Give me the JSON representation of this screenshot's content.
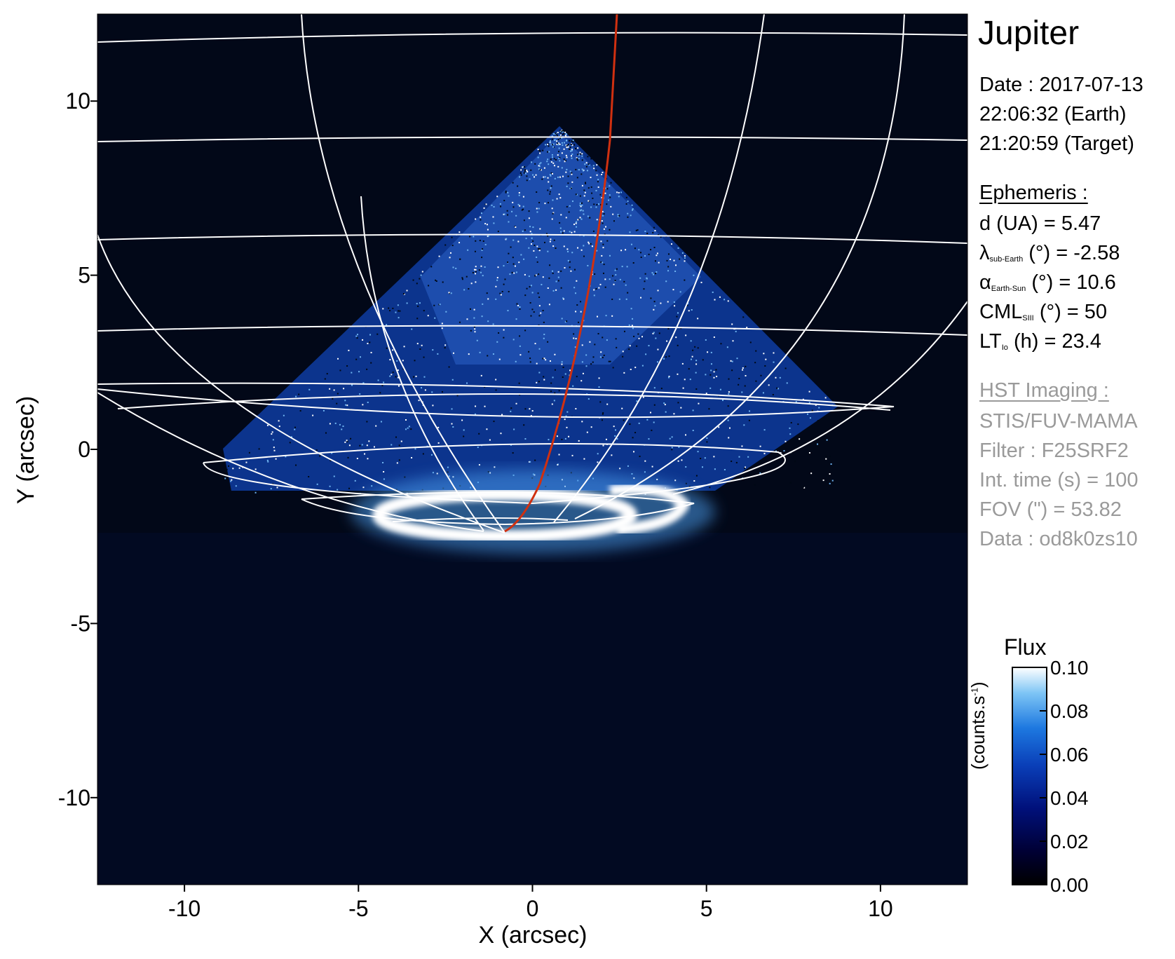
{
  "figure": {
    "title": "Jupiter",
    "date_line": "Date : 2017-07-13",
    "earth_time": "22:06:32 (Earth)",
    "target_time": "21:20:59 (Target)",
    "ephemeris": {
      "header": "Ephemeris :",
      "distance": "d (UA)    = 5.47",
      "lambda_symbol": "λ",
      "lambda_sub": "sub-Earth",
      "lambda_rest": "(°) = -2.58",
      "alpha_symbol": "α",
      "alpha_sub": "Earth-Sun",
      "alpha_rest": "(°) = 10.6",
      "cml_symbol": "CML",
      "cml_sub": "SIII",
      "cml_rest": "(°) = 50",
      "lt_symbol": "LT",
      "lt_sub": "Io",
      "lt_rest": "(h) = 23.4"
    },
    "hst": {
      "header": "HST Imaging :",
      "instrument": "STIS/FUV-MAMA",
      "filter": "Filter : F25SRF2",
      "int_time": "Int. time (s) = 100",
      "fov": "FOV (\") = 53.82",
      "data_id": "Data : od8k0zs10"
    },
    "colorbar": {
      "title": "Flux",
      "unit_label": "(counts.s",
      "unit_exp": "-1",
      "unit_close": ")",
      "ticks": [
        "0.10",
        "0.08",
        "0.06",
        "0.04",
        "0.02",
        "0.00"
      ],
      "colors": [
        "#000000",
        "#000033",
        "#00107a",
        "#0a3fb8",
        "#1d78e0",
        "#7cc4f5",
        "#ffffff"
      ]
    },
    "axes": {
      "xlabel": "X (arcsec)",
      "ylabel": "Y (arcsec)",
      "xticks": [
        "-10",
        "-5",
        "0",
        "5",
        "10"
      ],
      "yticks": [
        "10",
        "5",
        "0",
        "-5",
        "-10"
      ],
      "xlim": [
        -12.5,
        12.5
      ],
      "ylim": [
        -12.5,
        12.5
      ]
    },
    "overlay_colors": {
      "grid": "#ffffff",
      "footprint": "#d03010",
      "background": "#020818"
    }
  }
}
